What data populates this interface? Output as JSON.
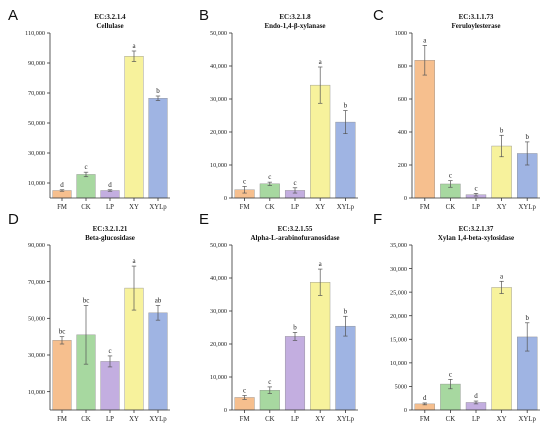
{
  "colors": {
    "FM": "#f6bf8e",
    "CK": "#a7d8a0",
    "LP": "#c3aee0",
    "XY": "#f7f29c",
    "XYLp": "#9fb4e3",
    "axis": "#333333",
    "error_bar": "#555555"
  },
  "chart_data": [
    {
      "type": "bar",
      "panel": "A",
      "ec": "EC:3.2.1.4",
      "enzyme": "Cellulase",
      "categories": [
        "FM",
        "CK",
        "LP",
        "XY",
        "XYLp"
      ],
      "values": [
        5000,
        15700,
        5000,
        94500,
        66500
      ],
      "errors": [
        500,
        1500,
        500,
        3500,
        1500
      ],
      "significance": [
        "d",
        "c",
        "d",
        "a",
        "b"
      ],
      "ylim": [
        0,
        110000
      ],
      "yticks": [
        10000,
        30000,
        50000,
        70000,
        90000,
        110000
      ],
      "ytick_labels": [
        "10,000",
        "30,000",
        "50,000",
        "70,000",
        "90,000",
        "110,000"
      ],
      "ylabel": "",
      "xlabel": ""
    },
    {
      "type": "bar",
      "panel": "B",
      "ec": "EC:3.2.1.8",
      "enzyme": "Endo-1,4-β-xylanase",
      "categories": [
        "FM",
        "CK",
        "LP",
        "XY",
        "XYLp"
      ],
      "values": [
        2500,
        4300,
        2300,
        34200,
        23000
      ],
      "errors": [
        1000,
        500,
        800,
        5500,
        3500
      ],
      "significance": [
        "c",
        "c",
        "c",
        "a",
        "b"
      ],
      "ylim": [
        0,
        50000
      ],
      "yticks": [
        0,
        10000,
        20000,
        30000,
        40000,
        50000
      ],
      "ytick_labels": [
        "0",
        "10,000",
        "20,000",
        "30,000",
        "40,000",
        "50,000"
      ],
      "ylabel": "",
      "xlabel": ""
    },
    {
      "type": "bar",
      "panel": "C",
      "ec": "EC:3.1.1.73",
      "enzyme": "Feruloylesterase",
      "categories": [
        "FM",
        "CK",
        "LP",
        "XY",
        "XYLp"
      ],
      "values": [
        835,
        85,
        20,
        315,
        270
      ],
      "errors": [
        90,
        20,
        8,
        65,
        70
      ],
      "significance": [
        "a",
        "c",
        "c",
        "b",
        "b"
      ],
      "ylim": [
        0,
        1000
      ],
      "yticks": [
        0,
        200,
        400,
        600,
        800,
        1000
      ],
      "ytick_labels": [
        "0",
        "200",
        "400",
        "600",
        "800",
        "1000"
      ],
      "ylabel": "",
      "xlabel": ""
    },
    {
      "type": "bar",
      "panel": "D",
      "ec": "EC:3.2.1.21",
      "enzyme": "Beta-glucosidase",
      "categories": [
        "FM",
        "CK",
        "LP",
        "XY",
        "XYLp"
      ],
      "values": [
        38000,
        41000,
        26500,
        66500,
        53000
      ],
      "errors": [
        2000,
        16000,
        3000,
        12000,
        4000
      ],
      "significance": [
        "bc",
        "bc",
        "c",
        "a",
        "ab"
      ],
      "ylim": [
        0,
        90000
      ],
      "yticks": [
        10000,
        30000,
        50000,
        70000,
        90000
      ],
      "ytick_labels": [
        "10,000",
        "30,000",
        "50,000",
        "70,000",
        "90,000"
      ],
      "ylabel": "",
      "xlabel": ""
    },
    {
      "type": "bar",
      "panel": "E",
      "ec": "EC:3.2.1.55",
      "enzyme": "Alpha-L-arabinofuranosidase",
      "categories": [
        "FM",
        "CK",
        "LP",
        "XY",
        "XYLp"
      ],
      "values": [
        3800,
        6000,
        22300,
        38700,
        25400
      ],
      "errors": [
        600,
        1000,
        1200,
        4000,
        3000
      ],
      "significance": [
        "c",
        "c",
        "b",
        "a",
        "b"
      ],
      "ylim": [
        0,
        50000
      ],
      "yticks": [
        0,
        10000,
        20000,
        30000,
        40000,
        50000
      ],
      "ytick_labels": [
        "0",
        "10,000",
        "20,000",
        "30,000",
        "40,000",
        "50,000"
      ],
      "ylabel": "",
      "xlabel": ""
    },
    {
      "type": "bar",
      "panel": "F",
      "ec": "EC:3.2.1.37",
      "enzyme": "Xylan 1,4-beta-xylosidase",
      "categories": [
        "FM",
        "CK",
        "LP",
        "XY",
        "XYLp"
      ],
      "values": [
        1300,
        5500,
        1600,
        26000,
        15500
      ],
      "errors": [
        200,
        1000,
        300,
        1300,
        3000
      ],
      "significance": [
        "d",
        "c",
        "d",
        "a",
        "b"
      ],
      "ylim": [
        0,
        35000
      ],
      "yticks": [
        0,
        5000,
        10000,
        15000,
        20000,
        25000,
        30000,
        35000
      ],
      "ytick_labels": [
        "0",
        "5000",
        "10,000",
        "15,000",
        "20,000",
        "25,000",
        "30,000",
        "35,000"
      ],
      "ylabel": "",
      "xlabel": ""
    }
  ]
}
